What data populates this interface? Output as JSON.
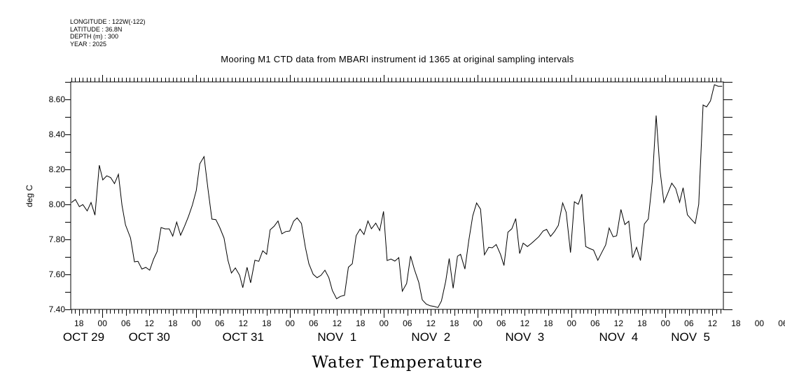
{
  "header": {
    "longitude": "LONGITUDE : 122W(-122)",
    "latitude": "LATITUDE : 36.8N",
    "depth": "DEPTH (m) : 300",
    "year": "YEAR : 2025"
  },
  "chart_data": {
    "type": "line",
    "title": "Mooring M1 CTD data from MBARI instrument id 1365 at original sampling intervals",
    "xlabel": "Water Temperature",
    "ylabel": "deg C",
    "x_units": "hours since OCT 30 00:00 (2025)",
    "xlim": [
      -8.1,
      158.8
    ],
    "ylim": [
      7.4,
      8.7
    ],
    "y_ticks": [
      "7.40",
      "7.60",
      "7.80",
      "8.00",
      "8.20",
      "8.40",
      "8.60"
    ],
    "x_tick_labels": [
      "18",
      "00",
      "06",
      "12",
      "18",
      "00",
      "06",
      "12",
      "18",
      "00",
      "06",
      "12",
      "18",
      "00",
      "06",
      "12",
      "18",
      "00",
      "06",
      "12",
      "18",
      "00",
      "06",
      "12",
      "18",
      "00",
      "06",
      "12",
      "18",
      "00",
      "06",
      "12"
    ],
    "date_labels": [
      "OCT 29",
      "OCT 30",
      "OCT 31",
      "NOV  1",
      "NOV  2",
      "NOV  3",
      "NOV  4",
      "NOV  5"
    ],
    "grid": false,
    "series": [
      {
        "name": "Water Temperature",
        "color": "#000000",
        "x": [
          -7.9,
          -6.9,
          -5.9,
          -5.0,
          -3.9,
          -2.9,
          -1.9,
          -0.8,
          0.1,
          1.1,
          2.1,
          3.1,
          4.1,
          5.0,
          5.9,
          7.2,
          8.2,
          9.1,
          10.1,
          11.1,
          12.1,
          13.1,
          14.0,
          15.0,
          16.0,
          17.1,
          18.0,
          19.0,
          20.0,
          21.0,
          22.0,
          23.0,
          24.0,
          24.9,
          26.0,
          27.0,
          28.0,
          29.0,
          30.0,
          31.1,
          32.1,
          33.0,
          34.0,
          35.1,
          35.9,
          37.0,
          37.9,
          39.0,
          40.0,
          41.0,
          42.0,
          42.9,
          43.9,
          44.9,
          45.9,
          46.9,
          47.9,
          48.9,
          49.8,
          50.9,
          51.9,
          52.8,
          53.9,
          54.9,
          55.9,
          56.9,
          57.9,
          58.8,
          59.9,
          60.9,
          61.9,
          62.9,
          63.9,
          64.9,
          65.9,
          66.9,
          67.9,
          68.8,
          69.9,
          70.9,
          71.9,
          72.8,
          73.8,
          74.8,
          75.8,
          76.7,
          77.8,
          78.8,
          79.8,
          80.9,
          81.8,
          82.8,
          83.8,
          84.8,
          85.8,
          86.7,
          87.8,
          88.7,
          89.7,
          90.8,
          91.6,
          92.7,
          93.7,
          94.7,
          95.7,
          96.7,
          97.7,
          98.8,
          99.7,
          100.7,
          101.8,
          102.7,
          103.7,
          104.7,
          105.7,
          106.7,
          107.6,
          108.7,
          109.7,
          110.6,
          111.6,
          112.7,
          113.6,
          114.6,
          115.6,
          116.6,
          117.7,
          118.6,
          119.7,
          120.7,
          121.7,
          122.6,
          123.6,
          124.6,
          125.6,
          126.7,
          127.7,
          128.7,
          129.6,
          130.6,
          131.5,
          132.6,
          133.6,
          134.6,
          135.6,
          136.6,
          137.6,
          138.6,
          139.6,
          140.6,
          141.6,
          142.6,
          143.6,
          144.6,
          145.6,
          146.6,
          147.6,
          148.5,
          149.6,
          150.6,
          151.6,
          152.5,
          153.6,
          154.5,
          155.5,
          156.5,
          157.5,
          158.5
        ],
        "y": [
          8.011,
          8.028,
          7.987,
          7.999,
          7.963,
          8.011,
          7.939,
          8.224,
          8.14,
          8.163,
          8.153,
          8.119,
          8.172,
          7.995,
          7.883,
          7.808,
          7.672,
          7.675,
          7.631,
          7.64,
          7.624,
          7.688,
          7.731,
          7.868,
          7.86,
          7.86,
          7.819,
          7.899,
          7.824,
          7.875,
          7.931,
          7.996,
          8.08,
          8.232,
          8.273,
          8.088,
          7.916,
          7.913,
          7.868,
          7.808,
          7.681,
          7.608,
          7.637,
          7.595,
          7.524,
          7.641,
          7.552,
          7.681,
          7.675,
          7.735,
          7.715,
          7.855,
          7.875,
          7.905,
          7.832,
          7.845,
          7.848,
          7.904,
          7.923,
          7.891,
          7.755,
          7.661,
          7.601,
          7.581,
          7.595,
          7.624,
          7.581,
          7.508,
          7.461,
          7.475,
          7.48,
          7.641,
          7.661,
          7.821,
          7.859,
          7.828,
          7.905,
          7.861,
          7.893,
          7.851,
          7.96,
          7.679,
          7.688,
          7.676,
          7.696,
          7.504,
          7.548,
          7.705,
          7.628,
          7.555,
          7.455,
          7.431,
          7.421,
          7.417,
          7.411,
          7.448,
          7.561,
          7.691,
          7.521,
          7.704,
          7.715,
          7.631,
          7.795,
          7.935,
          8.008,
          7.973,
          7.712,
          7.755,
          7.752,
          7.771,
          7.715,
          7.651,
          7.841,
          7.861,
          7.919,
          7.719,
          7.779,
          7.759,
          7.777,
          7.795,
          7.815,
          7.848,
          7.857,
          7.817,
          7.845,
          7.88,
          8.008,
          7.955,
          7.725,
          8.015,
          8.001,
          8.059,
          7.759,
          7.748,
          7.739,
          7.681,
          7.725,
          7.768,
          7.865,
          7.815,
          7.821,
          7.971,
          7.885,
          7.904,
          7.695,
          7.755,
          7.679,
          7.888,
          7.917,
          8.128,
          8.508,
          8.195,
          8.011,
          8.065,
          8.121,
          8.091,
          8.012,
          8.095,
          7.941,
          7.915,
          7.891,
          8.001,
          8.568,
          8.557,
          8.592,
          8.684,
          8.675,
          8.675
        ]
      }
    ]
  }
}
